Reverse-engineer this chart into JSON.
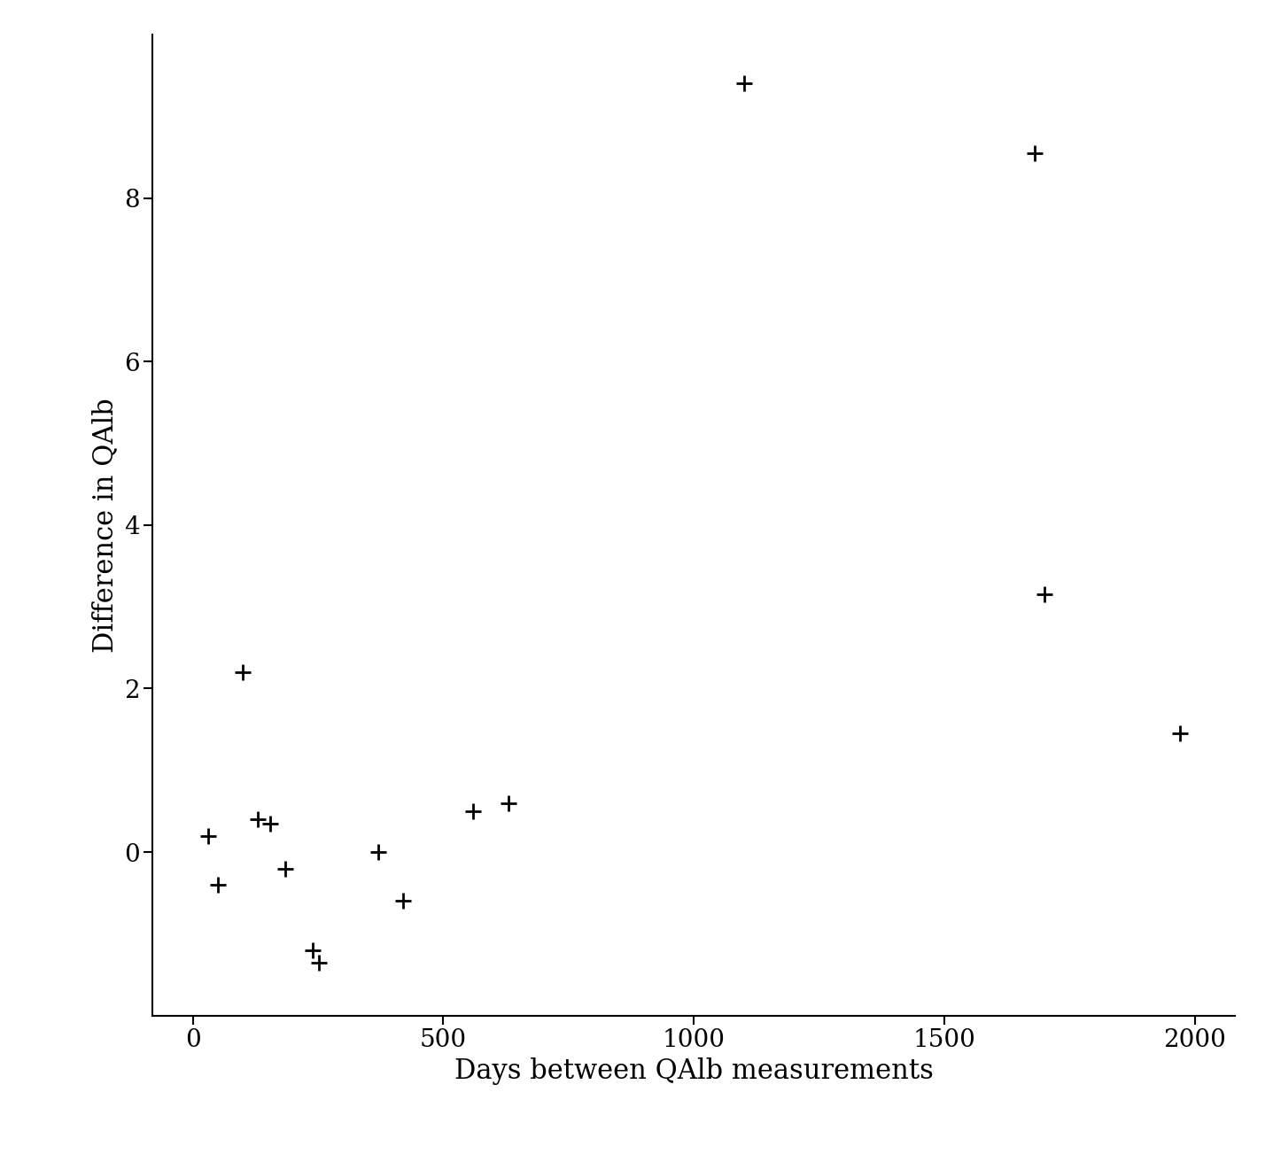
{
  "x": [
    30,
    50,
    100,
    130,
    155,
    185,
    240,
    252,
    370,
    420,
    560,
    630,
    1100,
    1680,
    1700,
    1970
  ],
  "y": [
    0.2,
    -0.4,
    2.2,
    0.4,
    0.35,
    -0.2,
    -1.2,
    -1.35,
    0.0,
    -0.6,
    0.5,
    0.6,
    9.4,
    8.55,
    3.15,
    1.45
  ],
  "xlabel": "Days between QAlb measurements",
  "ylabel": "Difference in QAlb",
  "xlim": [
    -80,
    2080
  ],
  "ylim": [
    -2.0,
    10.0
  ],
  "xticks": [
    0,
    500,
    1000,
    1500,
    2000
  ],
  "yticks": [
    0,
    2,
    4,
    6,
    8
  ],
  "marker": "+",
  "marker_size": 180,
  "marker_linewidth": 2.0,
  "marker_color": "black",
  "bg_color": "white",
  "spine_color": "black",
  "label_fontsize": 22,
  "tick_fontsize": 20
}
